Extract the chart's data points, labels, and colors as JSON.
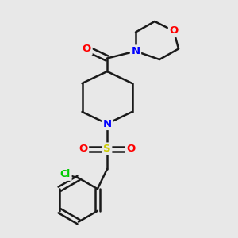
{
  "background_color": "#e8e8e8",
  "bond_color": "#1a1a1a",
  "bond_width": 1.8,
  "atom_colors": {
    "N": "#0000ff",
    "O": "#ff0000",
    "S": "#cccc00",
    "Cl": "#00cc00",
    "C": "#1a1a1a"
  },
  "font_size": 9.5,
  "figsize": [
    3.0,
    3.0
  ],
  "dpi": 100
}
